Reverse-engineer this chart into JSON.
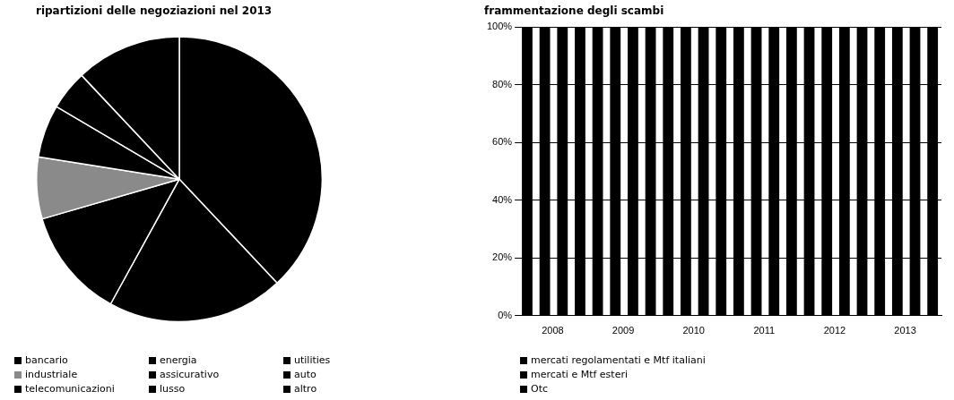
{
  "chart_data": [
    {
      "type": "pie",
      "title": "ripartizioni delle negoziazioni nel 2013",
      "categories": [
        "bancario",
        "energia",
        "utilities",
        "industriale",
        "assicurativo",
        "auto",
        "telecomunicazioni",
        "lusso",
        "altro"
      ],
      "values": [
        38,
        20,
        12.5,
        7,
        6,
        4.5,
        0,
        0,
        12
      ],
      "colors": [
        "#000000",
        "#000000",
        "#000000",
        "#8a8a8a",
        "#000000",
        "#000000",
        "#000000",
        "#000000",
        "#000000"
      ],
      "legend": "bottom"
    },
    {
      "type": "bar",
      "title": "frammentazione degli scambi",
      "stacked": true,
      "categories": [
        null,
        "2008",
        null,
        null,
        null,
        "2009",
        null,
        null,
        null,
        "2010",
        null,
        null,
        null,
        "2011",
        null,
        null,
        null,
        "2012",
        null,
        null,
        null,
        "2013",
        null,
        null
      ],
      "series": [
        {
          "name": "mercati regolamentati e Mtf italiani",
          "color": "#000000",
          "values": [
            100,
            100,
            100,
            100,
            100,
            100,
            100,
            100,
            100,
            100,
            100,
            100,
            100,
            100,
            100,
            100,
            100,
            100,
            100,
            100,
            100,
            100,
            100,
            100
          ]
        },
        {
          "name": "mercati e Mtf esteri",
          "color": "#000000",
          "values": [
            null,
            null,
            null,
            null,
            null,
            null,
            null,
            null,
            null,
            null,
            null,
            null,
            null,
            null,
            null,
            null,
            null,
            null,
            null,
            null,
            null,
            null,
            null,
            null
          ]
        },
        {
          "name": "Otc",
          "color": "#000000",
          "values": [
            null,
            null,
            null,
            null,
            null,
            null,
            null,
            null,
            null,
            null,
            null,
            null,
            null,
            null,
            null,
            null,
            null,
            null,
            null,
            null,
            null,
            null,
            null,
            null
          ]
        }
      ],
      "ylim": [
        0,
        100
      ],
      "yticks": [
        {
          "value": 0,
          "label": "0%"
        },
        {
          "value": 20,
          "label": "20%"
        },
        {
          "value": 40,
          "label": "40%"
        },
        {
          "value": 60,
          "label": "60%"
        },
        {
          "value": 80,
          "label": "80%"
        },
        {
          "value": 100,
          "label": "100%"
        }
      ],
      "grid": "y",
      "legend": "bottom"
    }
  ]
}
